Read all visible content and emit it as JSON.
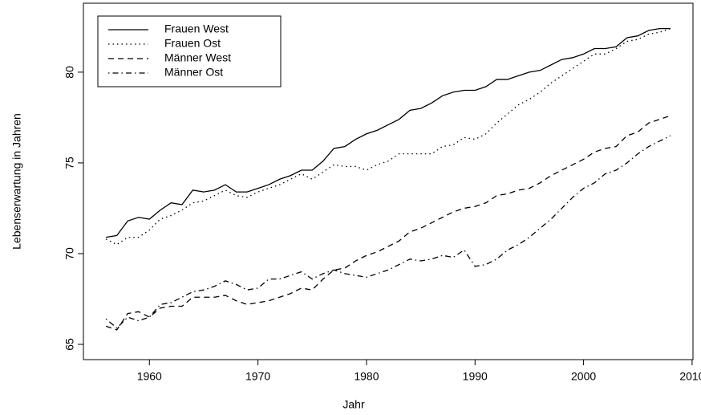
{
  "chart_data": {
    "type": "line",
    "x_label": "Jahr",
    "y_label": "Lebenserwartung in Jahren",
    "x": [
      1956,
      1957,
      1958,
      1959,
      1960,
      1961,
      1962,
      1963,
      1964,
      1965,
      1966,
      1967,
      1968,
      1969,
      1970,
      1971,
      1972,
      1973,
      1974,
      1975,
      1976,
      1977,
      1978,
      1979,
      1980,
      1981,
      1982,
      1983,
      1984,
      1985,
      1986,
      1987,
      1988,
      1989,
      1990,
      1991,
      1992,
      1993,
      1994,
      1995,
      1996,
      1997,
      1998,
      1999,
      2000,
      2001,
      2002,
      2003,
      2004,
      2005,
      2006,
      2007,
      2008
    ],
    "series": [
      {
        "name": "Frauen West",
        "color": "#000000",
        "dash": "solid",
        "values": [
          70.9,
          71.0,
          71.8,
          72.0,
          71.9,
          72.4,
          72.8,
          72.7,
          73.5,
          73.4,
          73.5,
          73.8,
          73.4,
          73.4,
          73.6,
          73.8,
          74.1,
          74.3,
          74.6,
          74.6,
          75.1,
          75.8,
          75.9,
          76.3,
          76.6,
          76.8,
          77.1,
          77.4,
          77.9,
          78.0,
          78.3,
          78.7,
          78.9,
          79.0,
          79.0,
          79.2,
          79.6,
          79.6,
          79.8,
          80.0,
          80.1,
          80.4,
          80.7,
          80.8,
          81.0,
          81.3,
          81.3,
          81.4,
          81.9,
          82.0,
          82.3,
          82.4,
          82.4
        ]
      },
      {
        "name": "Frauen Ost",
        "color": "#000000",
        "dash": "dotted",
        "values": [
          70.8,
          70.5,
          70.9,
          70.9,
          71.3,
          71.9,
          72.1,
          72.4,
          72.8,
          72.9,
          73.2,
          73.5,
          73.2,
          73.1,
          73.4,
          73.6,
          73.8,
          74.1,
          74.4,
          74.1,
          74.5,
          74.9,
          74.8,
          74.8,
          74.6,
          74.9,
          75.1,
          75.5,
          75.5,
          75.5,
          75.5,
          75.9,
          76.0,
          76.4,
          76.3,
          76.6,
          77.2,
          77.7,
          78.2,
          78.5,
          78.9,
          79.4,
          79.8,
          80.2,
          80.6,
          81.0,
          81.0,
          81.3,
          81.7,
          81.8,
          82.1,
          82.2,
          82.4
        ]
      },
      {
        "name": "Männer West",
        "color": "#000000",
        "dash": "dashed",
        "values": [
          66.0,
          65.8,
          66.7,
          66.8,
          66.5,
          67.0,
          67.1,
          67.1,
          67.6,
          67.6,
          67.6,
          67.7,
          67.4,
          67.2,
          67.3,
          67.4,
          67.6,
          67.8,
          68.1,
          68.0,
          68.6,
          69.1,
          69.2,
          69.6,
          69.9,
          70.1,
          70.4,
          70.7,
          71.2,
          71.4,
          71.7,
          72.0,
          72.3,
          72.5,
          72.6,
          72.8,
          73.2,
          73.3,
          73.5,
          73.6,
          73.9,
          74.3,
          74.6,
          74.9,
          75.2,
          75.6,
          75.8,
          75.9,
          76.5,
          76.7,
          77.2,
          77.4,
          77.6
        ]
      },
      {
        "name": "Männer Ost",
        "color": "#000000",
        "dash": "dotdash",
        "values": [
          66.4,
          65.9,
          66.5,
          66.3,
          66.5,
          67.2,
          67.3,
          67.6,
          67.9,
          68.0,
          68.2,
          68.5,
          68.3,
          68.0,
          68.1,
          68.6,
          68.6,
          68.8,
          69.0,
          68.6,
          68.9,
          69.1,
          68.9,
          68.8,
          68.7,
          68.9,
          69.1,
          69.4,
          69.7,
          69.6,
          69.7,
          69.9,
          69.8,
          70.2,
          69.3,
          69.4,
          69.7,
          70.2,
          70.5,
          70.9,
          71.4,
          71.9,
          72.5,
          73.1,
          73.6,
          73.9,
          74.4,
          74.6,
          75.0,
          75.5,
          75.9,
          76.2,
          76.5
        ]
      }
    ],
    "xlim": [
      1953.92,
      2010.08
    ],
    "xticks": [
      1960,
      1970,
      1980,
      1990,
      2000,
      2010
    ],
    "ylim": [
      64.16,
      83.8
    ],
    "yticks": [
      65,
      70,
      75,
      80
    ],
    "legend": "top-left"
  }
}
